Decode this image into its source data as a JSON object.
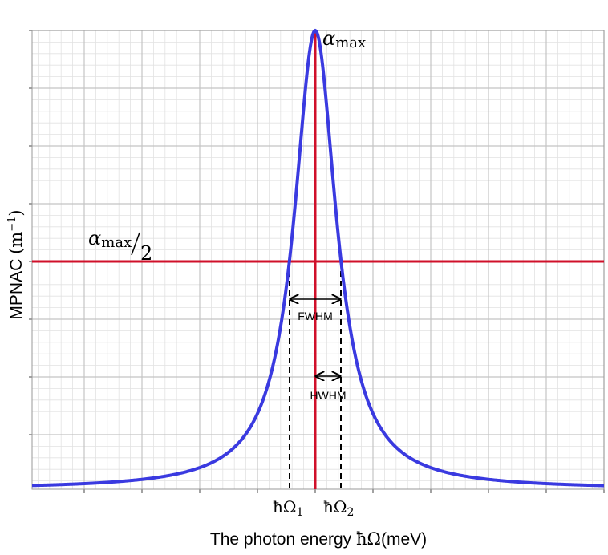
{
  "peak_label": {
    "symbol": "α",
    "subscript": "max"
  },
  "half_label": {
    "symbol": "α",
    "subscript": "max",
    "divisor": "2"
  },
  "omega1": {
    "symbol": "ħΩ",
    "subscript": "1"
  },
  "omega2": {
    "symbol": "ħΩ",
    "subscript": "2"
  },
  "fwhm": "FWHM",
  "hwhm": "HWHM",
  "x_label": {
    "text": "The photon energy ",
    "symbol": "ħΩ",
    "unit": "(meV)"
  },
  "y_label": {
    "text": "MPNAC ",
    "unit": "(m",
    "exponent": "−1",
    "close": ")"
  }
}
